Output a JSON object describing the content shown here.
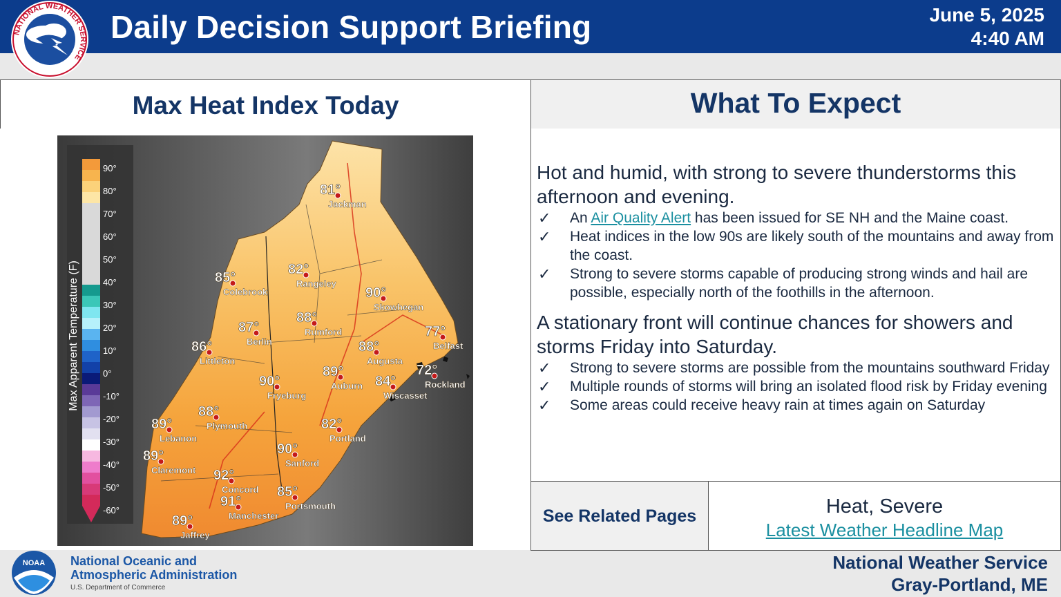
{
  "header": {
    "title": "Daily Decision Support Briefing",
    "date": "June 5, 2025",
    "time": "4:40 AM",
    "logo_text": "NATIONAL WEATHER SERVICE",
    "bar_color": "#0c3c8c"
  },
  "left_panel": {
    "heading": "Max Heat Index Today",
    "map": {
      "legend_label": "Max Apparent Temperature (F)",
      "legend_ticks": [
        "90°",
        "80°",
        "70°",
        "60°",
        "50°",
        "40°",
        "30°",
        "20°",
        "10°",
        "0°",
        "-10°",
        "-20°",
        "-30°",
        "-40°",
        "-50°",
        "-60°"
      ],
      "cities": [
        {
          "name": "Jackman",
          "value": "81°"
        },
        {
          "name": "Colebrook",
          "value": "85°"
        },
        {
          "name": "Rangeley",
          "value": "82°"
        },
        {
          "name": "Skowhegan",
          "value": "90°"
        },
        {
          "name": "Rumford",
          "value": "88°"
        },
        {
          "name": "Berlin",
          "value": "87°"
        },
        {
          "name": "Belfast",
          "value": "77°"
        },
        {
          "name": "Littleton",
          "value": "86°"
        },
        {
          "name": "Augusta",
          "value": "88°"
        },
        {
          "name": "Rockland",
          "value": "72°"
        },
        {
          "name": "Fryeburg",
          "value": "90°"
        },
        {
          "name": "Auburn",
          "value": "89°"
        },
        {
          "name": "Wiscasset",
          "value": "84°"
        },
        {
          "name": "Plymouth",
          "value": "88°"
        },
        {
          "name": "Lebanon",
          "value": "89°"
        },
        {
          "name": "Portland",
          "value": "82°"
        },
        {
          "name": "Sanford",
          "value": "90°"
        },
        {
          "name": "Claremont",
          "value": "89°"
        },
        {
          "name": "Concord",
          "value": "92°"
        },
        {
          "name": "Portsmouth",
          "value": "85°"
        },
        {
          "name": "Manchester",
          "value": "91°"
        },
        {
          "name": "Jaffrey",
          "value": "89°"
        }
      ]
    }
  },
  "right_panel": {
    "heading": "What To Expect",
    "para1": "Hot and humid, with strong to severe thunderstorms this afternoon and evening.",
    "bullet1_pre": "An ",
    "bullet1_link": "Air Quality Alert",
    "bullet1_post": " has been issued for SE NH and the Maine coast.",
    "bullet2": "Heat indices in the low 90s are likely south of the mountains and away from the coast.",
    "bullet3": "Strong to severe storms capable of producing strong winds and hail are possible, especially north of the foothills in the afternoon.",
    "para2": "A stationary front will continue chances for showers and storms Friday into Saturday.",
    "bullet4": "Strong to severe storms are possible from the mountains southward Friday",
    "bullet5": "Multiple rounds of storms will bring an isolated flood risk by Friday evening",
    "bullet6": "Some areas could receive heavy rain at times again on Saturday",
    "check": "✓",
    "link_color": "#1a8fa0"
  },
  "related": {
    "label": "See Related Pages",
    "topics": "Heat, Severe",
    "link": "Latest Weather Headline Map"
  },
  "footer": {
    "noaa_line1": "National Oceanic and",
    "noaa_line2": "Atmospheric Administration",
    "noaa_sub": "U.S. Department of Commerce",
    "noaa_logo_text": "NOAA",
    "office_line1": "National Weather Service",
    "office_line2": "Gray-Portland, ME"
  }
}
